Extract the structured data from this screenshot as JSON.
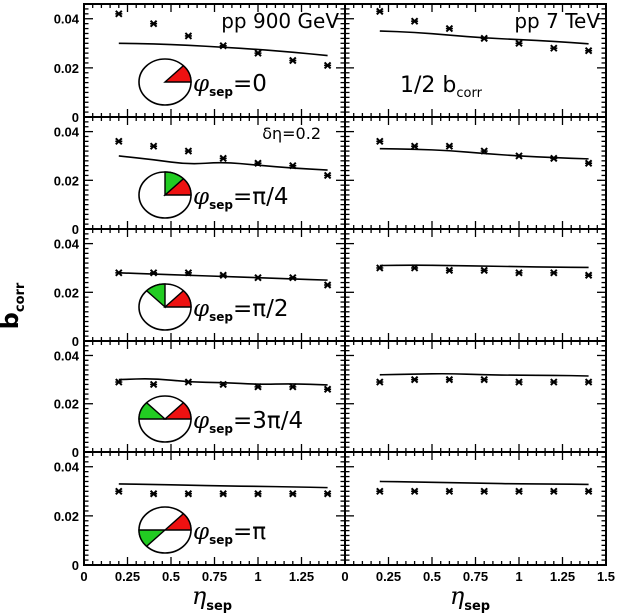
{
  "chart_data": {
    "type": "scatter",
    "figure": {
      "ylabel": "b",
      "ylabel_sub": "corr",
      "xlabel": "η",
      "xlabel_sub": "sep",
      "grid": false
    },
    "x": [
      0.2,
      0.4,
      0.6,
      0.8,
      1.0,
      1.2,
      1.4
    ],
    "columns": [
      {
        "name": "pp 900 GeV",
        "xlim": [
          0,
          1.5
        ],
        "xticks": [
          "0",
          "0.25",
          "0.5",
          "0.75",
          "1",
          "1.25"
        ]
      },
      {
        "name": "pp 7 TeV",
        "xlim": [
          0,
          1.5
        ],
        "xticks": [
          "0",
          "0.25",
          "0.5",
          "0.75",
          "1",
          "1.25",
          "1.5"
        ]
      }
    ],
    "rows": [
      {
        "label_prefix": "φ",
        "label_sub": "sep",
        "label_value": "=0",
        "ylim": [
          0,
          0.046
        ],
        "yticks": [
          "0",
          "0.02",
          "0.04"
        ],
        "pie_green_sector_start_deg": null
      },
      {
        "label_prefix": "φ",
        "label_sub": "sep",
        "label_value": "=π/4",
        "ylim": [
          0,
          0.046
        ],
        "yticks": [
          "0",
          "0.02",
          "0.04"
        ],
        "pie_green_sector_start_deg": 45
      },
      {
        "label_prefix": "φ",
        "label_sub": "sep",
        "label_value": "=π/2",
        "ylim": [
          0,
          0.046
        ],
        "yticks": [
          "0",
          "0.02",
          "0.04"
        ],
        "pie_green_sector_start_deg": 90
      },
      {
        "label_prefix": "φ",
        "label_sub": "sep",
        "label_value": "=3π/4",
        "ylim": [
          0,
          0.046
        ],
        "yticks": [
          "0",
          "0.02",
          "0.04"
        ],
        "pie_green_sector_start_deg": 135
      },
      {
        "label_prefix": "φ",
        "label_sub": "sep",
        "label_value": "=π",
        "ylim": [
          0,
          0.046
        ],
        "yticks": [
          "0",
          "0.02",
          "0.04"
        ],
        "pie_green_sector_start_deg": 180
      }
    ],
    "annotations": {
      "delta_eta": "δη=0.2",
      "half_bcorr": "1/2 b",
      "half_bcorr_sub": "corr"
    },
    "panels": [
      {
        "row": 0,
        "col": 0,
        "points": [
          0.042,
          0.038,
          0.033,
          0.029,
          0.026,
          0.023,
          0.021
        ],
        "curve": [
          0.03,
          0.0298,
          0.0292,
          0.0284,
          0.0275,
          0.0264,
          0.025
        ]
      },
      {
        "row": 0,
        "col": 1,
        "points": [
          0.043,
          0.039,
          0.036,
          0.032,
          0.03,
          0.028,
          0.027
        ],
        "curve": [
          0.035,
          0.0345,
          0.0333,
          0.0322,
          0.0315,
          0.0308,
          0.0298
        ]
      },
      {
        "row": 1,
        "col": 0,
        "points": [
          0.036,
          0.034,
          0.032,
          0.029,
          0.027,
          0.026,
          0.022
        ],
        "curve": [
          0.03,
          0.0285,
          0.0265,
          0.0275,
          0.0262,
          0.025,
          0.0242
        ]
      },
      {
        "row": 1,
        "col": 1,
        "points": [
          0.036,
          0.034,
          0.034,
          0.032,
          0.03,
          0.029,
          0.027
        ],
        "curve": [
          0.033,
          0.0328,
          0.0322,
          0.031,
          0.03,
          0.0293,
          0.0288
        ]
      },
      {
        "row": 2,
        "col": 0,
        "points": [
          0.028,
          0.028,
          0.028,
          0.027,
          0.026,
          0.026,
          0.023
        ],
        "curve": [
          0.028,
          0.0275,
          0.027,
          0.0265,
          0.026,
          0.0255,
          0.025
        ]
      },
      {
        "row": 2,
        "col": 1,
        "points": [
          0.03,
          0.03,
          0.029,
          0.029,
          0.028,
          0.028,
          0.027
        ],
        "curve": [
          0.031,
          0.0312,
          0.031,
          0.0308,
          0.0305,
          0.0303,
          0.0302
        ]
      },
      {
        "row": 3,
        "col": 0,
        "points": [
          0.029,
          0.028,
          0.029,
          0.028,
          0.027,
          0.027,
          0.026
        ],
        "curve": [
          0.03,
          0.0305,
          0.029,
          0.0288,
          0.028,
          0.0283,
          0.0278
        ]
      },
      {
        "row": 3,
        "col": 1,
        "points": [
          0.029,
          0.03,
          0.03,
          0.03,
          0.029,
          0.029,
          0.029
        ],
        "curve": [
          0.032,
          0.0323,
          0.0325,
          0.032,
          0.0318,
          0.0318,
          0.0315
        ]
      },
      {
        "row": 4,
        "col": 0,
        "points": [
          0.03,
          0.029,
          0.029,
          0.029,
          0.029,
          0.029,
          0.029
        ],
        "curve": [
          0.033,
          0.0328,
          0.0325,
          0.0322,
          0.032,
          0.0318,
          0.0315
        ]
      },
      {
        "row": 4,
        "col": 1,
        "points": [
          0.03,
          0.03,
          0.03,
          0.03,
          0.03,
          0.03,
          0.03
        ],
        "curve": [
          0.034,
          0.0338,
          0.0335,
          0.0333,
          0.033,
          0.033,
          0.0328
        ]
      }
    ]
  }
}
